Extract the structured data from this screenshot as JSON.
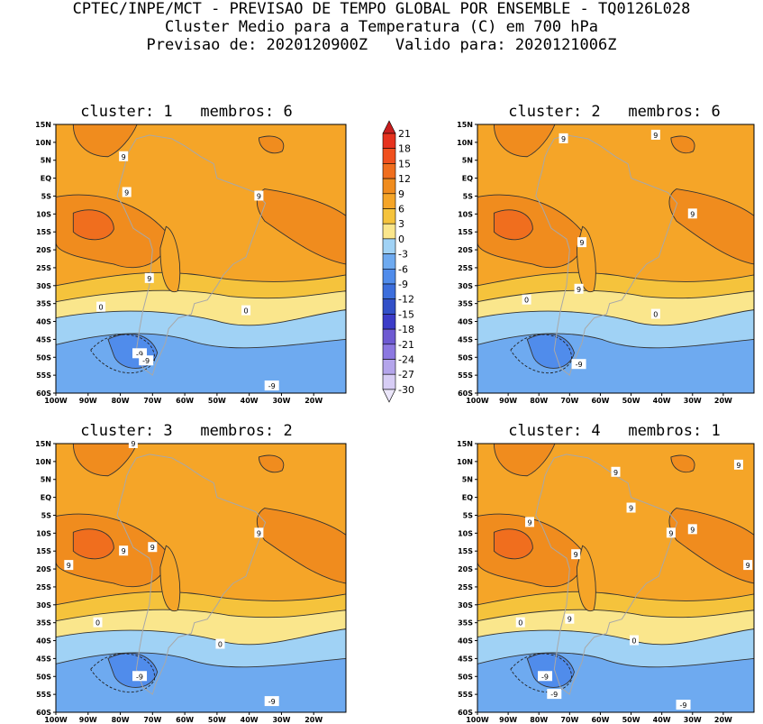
{
  "title": {
    "line1": "CPTEC/INPE/MCT - PREVISAO DE TEMPO GLOBAL POR ENSEMBLE - TQ0126L028",
    "line2": "Cluster Medio para a Temperatura (C) em 700 hPa",
    "line3": "Previsao de: 2020120900Z   Valido para: 2020121006Z"
  },
  "axes": {
    "lon_labels": [
      "100W",
      "90W",
      "80W",
      "70W",
      "60W",
      "50W",
      "40W",
      "30W",
      "20W"
    ],
    "lat_labels": [
      "15N",
      "10N",
      "5N",
      "EQ",
      "5S",
      "10S",
      "15S",
      "20S",
      "25S",
      "30S",
      "35S",
      "40S",
      "45S",
      "50S",
      "55S",
      "60S"
    ]
  },
  "colorbar": {
    "labels": [
      "21",
      "18",
      "15",
      "12",
      "9",
      "6",
      "3",
      "0",
      "-3",
      "-6",
      "-9",
      "-12",
      "-15",
      "-18",
      "-21",
      "-24",
      "-27",
      "-30"
    ],
    "colors": [
      "#c81e1e",
      "#e6321e",
      "#f0501e",
      "#f06e1e",
      "#f08c1e",
      "#f5a528",
      "#f5c33c",
      "#fae68c",
      "#a0d2f5",
      "#6eaaf0",
      "#508ceb",
      "#3c6edc",
      "#3250c8",
      "#3c3cc8",
      "#6e5ad2",
      "#8c78e1",
      "#b4a5eb",
      "#d7cdf5",
      "#ebe6fa"
    ]
  },
  "panels": [
    {
      "title": "cluster: 1   membros: 6",
      "contour_labels": [
        {
          "t": "9",
          "lon": -79,
          "lat": 6
        },
        {
          "t": "9",
          "lon": -78,
          "lat": -4
        },
        {
          "t": "9",
          "lon": -37,
          "lat": -5
        },
        {
          "t": "9",
          "lon": -71,
          "lat": -28
        },
        {
          "t": "0",
          "lon": -86,
          "lat": -36
        },
        {
          "t": "0",
          "lon": -41,
          "lat": -37
        },
        {
          "t": "-9",
          "lon": -74,
          "lat": -49
        },
        {
          "t": "-9",
          "lon": -72,
          "lat": -51
        },
        {
          "t": "-9",
          "lon": -33,
          "lat": -58
        }
      ]
    },
    {
      "title": "cluster: 2   membros: 6",
      "contour_labels": [
        {
          "t": "9",
          "lon": -72,
          "lat": 11
        },
        {
          "t": "9",
          "lon": -42,
          "lat": 12
        },
        {
          "t": "9",
          "lon": -30,
          "lat": -10
        },
        {
          "t": "9",
          "lon": -66,
          "lat": -18
        },
        {
          "t": "9",
          "lon": -67,
          "lat": -31
        },
        {
          "t": "0",
          "lon": -84,
          "lat": -34
        },
        {
          "t": "0",
          "lon": -42,
          "lat": -38
        },
        {
          "t": "-9",
          "lon": -67,
          "lat": -52
        }
      ]
    },
    {
      "title": "cluster: 3   membros: 2",
      "contour_labels": [
        {
          "t": "9",
          "lon": -76,
          "lat": 15
        },
        {
          "t": "9",
          "lon": -70,
          "lat": -14
        },
        {
          "t": "9",
          "lon": -79,
          "lat": -15
        },
        {
          "t": "9",
          "lon": -37,
          "lat": -10
        },
        {
          "t": "9",
          "lon": -96,
          "lat": -19
        },
        {
          "t": "0",
          "lon": -87,
          "lat": -35
        },
        {
          "t": "0",
          "lon": -49,
          "lat": -41
        },
        {
          "t": "-9",
          "lon": -74,
          "lat": -50
        },
        {
          "t": "-9",
          "lon": -33,
          "lat": -57
        }
      ]
    },
    {
      "title": "cluster: 4   membros: 1",
      "contour_labels": [
        {
          "t": "9",
          "lon": -83,
          "lat": -7
        },
        {
          "t": "9",
          "lon": -68,
          "lat": -16
        },
        {
          "t": "9",
          "lon": -55,
          "lat": 7
        },
        {
          "t": "9",
          "lon": -50,
          "lat": -3
        },
        {
          "t": "9",
          "lon": -37,
          "lat": -10
        },
        {
          "t": "9",
          "lon": -30,
          "lat": -9
        },
        {
          "t": "9",
          "lon": -15,
          "lat": 9
        },
        {
          "t": "9",
          "lon": -12,
          "lat": -19
        },
        {
          "t": "9",
          "lon": -70,
          "lat": -34
        },
        {
          "t": "0",
          "lon": -86,
          "lat": -35
        },
        {
          "t": "0",
          "lon": -49,
          "lat": -40
        },
        {
          "t": "-9",
          "lon": -78,
          "lat": -50
        },
        {
          "t": "-9",
          "lon": -75,
          "lat": -55
        },
        {
          "t": "-9",
          "lon": -33,
          "lat": -58
        }
      ]
    }
  ]
}
